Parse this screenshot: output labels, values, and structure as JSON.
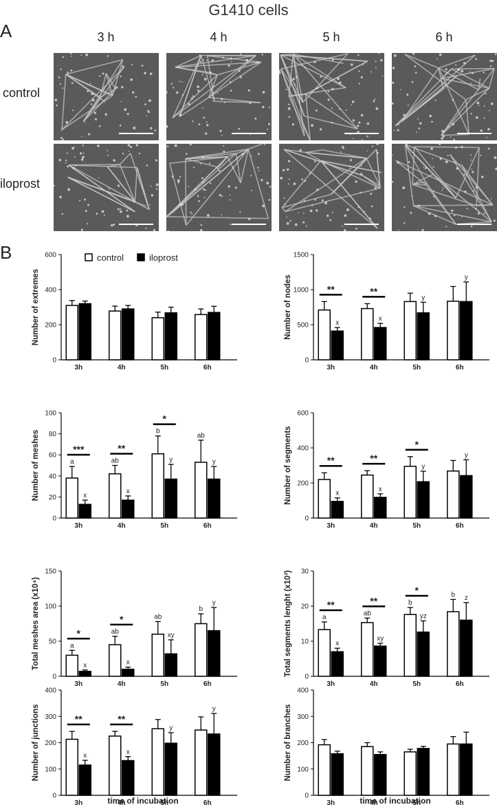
{
  "figure_title": "G1410 cells",
  "panel_a": {
    "letter": "A",
    "times": [
      "3 h",
      "4 h",
      "5 h",
      "6 h"
    ],
    "rows": [
      "control",
      "iloprost"
    ]
  },
  "panel_b": {
    "letter": "B",
    "legend": [
      "control",
      "iloprost"
    ],
    "xlabel": "time of incubation"
  },
  "chart_data": [
    {
      "type": "bar",
      "ylabel": "Number of extremes",
      "categories": [
        "3h",
        "4h",
        "5h",
        "6h"
      ],
      "ylim": [
        0,
        600
      ],
      "yticks": [
        0,
        200,
        400,
        600
      ],
      "series": [
        {
          "name": "control",
          "values": [
            310,
            278,
            240,
            258
          ],
          "errors": [
            28,
            28,
            32,
            32
          ]
        },
        {
          "name": "iloprost",
          "values": [
            320,
            290,
            268,
            270
          ],
          "errors": [
            15,
            20,
            32,
            35
          ]
        }
      ],
      "significance": [],
      "letters_control": [
        "",
        "",
        "",
        ""
      ],
      "letters_iloprost": [
        "",
        "",
        "",
        ""
      ]
    },
    {
      "type": "bar",
      "ylabel": "Number of nodes",
      "categories": [
        "3h",
        "4h",
        "5h",
        "6h"
      ],
      "ylim": [
        0,
        1500
      ],
      "yticks": [
        0,
        500,
        1000,
        1500
      ],
      "series": [
        {
          "name": "control",
          "values": [
            710,
            730,
            830,
            835
          ],
          "errors": [
            120,
            70,
            120,
            210
          ]
        },
        {
          "name": "iloprost",
          "values": [
            410,
            460,
            670,
            830
          ],
          "errors": [
            50,
            60,
            150,
            280
          ]
        }
      ],
      "significance": [
        "**",
        "**",
        "",
        ""
      ],
      "letters_control": [
        "",
        "",
        "",
        ""
      ],
      "letters_iloprost": [
        "x",
        "x",
        "y",
        "y"
      ]
    },
    {
      "type": "bar",
      "ylabel": "Number of meshes",
      "categories": [
        "3h",
        "4h",
        "5h",
        "6h"
      ],
      "ylim": [
        0,
        100
      ],
      "yticks": [
        0,
        20,
        40,
        60,
        80,
        100
      ],
      "series": [
        {
          "name": "control",
          "values": [
            38,
            42,
            61,
            53
          ],
          "errors": [
            11,
            8,
            17,
            21
          ]
        },
        {
          "name": "iloprost",
          "values": [
            13,
            17,
            37,
            37
          ],
          "errors": [
            4,
            4,
            14,
            12
          ]
        }
      ],
      "significance": [
        "***",
        "**",
        "*",
        ""
      ],
      "letters_control": [
        "a",
        "ab",
        "b",
        "ab"
      ],
      "letters_iloprost": [
        "x",
        "x",
        "y",
        "y"
      ]
    },
    {
      "type": "bar",
      "ylabel": "Number of segments",
      "categories": [
        "3h",
        "4h",
        "5h",
        "6h"
      ],
      "ylim": [
        0,
        600
      ],
      "yticks": [
        0,
        200,
        400,
        600
      ],
      "series": [
        {
          "name": "control",
          "values": [
            220,
            245,
            295,
            268
          ],
          "errors": [
            38,
            25,
            55,
            60
          ]
        },
        {
          "name": "iloprost",
          "values": [
            95,
            118,
            207,
            242
          ],
          "errors": [
            20,
            20,
            60,
            90
          ]
        }
      ],
      "significance": [
        "**",
        "**",
        "*",
        ""
      ],
      "letters_control": [
        "",
        "",
        "",
        ""
      ],
      "letters_iloprost": [
        "x",
        "x",
        "y",
        "y"
      ]
    },
    {
      "type": "bar",
      "ylabel": "Total meshes area (x10⁴)",
      "categories": [
        "3h",
        "4h",
        "5h",
        "6h"
      ],
      "ylim": [
        0,
        150
      ],
      "yticks": [
        0,
        50,
        100,
        150
      ],
      "series": [
        {
          "name": "control",
          "values": [
            30,
            45,
            60,
            75
          ],
          "errors": [
            7,
            12,
            18,
            14
          ]
        },
        {
          "name": "iloprost",
          "values": [
            7,
            10,
            32,
            65
          ],
          "errors": [
            2,
            3,
            20,
            33
          ]
        }
      ],
      "significance": [
        "*",
        "*",
        "",
        ""
      ],
      "letters_control": [
        "a",
        "ab",
        "ab",
        "b"
      ],
      "letters_iloprost": [
        "x",
        "x",
        "xy",
        "y"
      ]
    },
    {
      "type": "bar",
      "ylabel": "Total segments lenght (x10³)",
      "categories": [
        "3h",
        "4h",
        "5h",
        "6h"
      ],
      "ylim": [
        0,
        30
      ],
      "yticks": [
        0,
        10,
        20,
        30
      ],
      "series": [
        {
          "name": "control",
          "values": [
            13.3,
            15.3,
            17.6,
            18.4
          ],
          "errors": [
            2.2,
            1.3,
            2.0,
            3.5
          ]
        },
        {
          "name": "iloprost",
          "values": [
            7.0,
            8.6,
            12.6,
            16.0
          ],
          "errors": [
            1.0,
            0.8,
            3.2,
            5.0
          ]
        }
      ],
      "significance": [
        "**",
        "**",
        "*",
        ""
      ],
      "letters_control": [
        "a",
        "ab",
        "b",
        "b"
      ],
      "letters_iloprost": [
        "x",
        "xy",
        "yz",
        "z"
      ]
    },
    {
      "type": "bar",
      "ylabel": "Number of junctions",
      "categories": [
        "3h",
        "4h",
        "5h",
        "6h"
      ],
      "ylim": [
        0,
        400
      ],
      "yticks": [
        0,
        100,
        200,
        300,
        400
      ],
      "series": [
        {
          "name": "control",
          "values": [
            213,
            225,
            253,
            248
          ],
          "errors": [
            30,
            18,
            35,
            50
          ]
        },
        {
          "name": "iloprost",
          "values": [
            115,
            132,
            198,
            233
          ],
          "errors": [
            18,
            15,
            40,
            78
          ]
        }
      ],
      "significance": [
        "**",
        "**",
        "",
        ""
      ],
      "letters_control": [
        "",
        "",
        "",
        ""
      ],
      "letters_iloprost": [
        "x",
        "x",
        "y",
        "y"
      ]
    },
    {
      "type": "bar",
      "ylabel": "Number of branches",
      "categories": [
        "3h",
        "4h",
        "5h",
        "6h"
      ],
      "ylim": [
        0,
        400
      ],
      "yticks": [
        0,
        100,
        200,
        300,
        400
      ],
      "series": [
        {
          "name": "control",
          "values": [
            192,
            185,
            165,
            195
          ],
          "errors": [
            20,
            15,
            10,
            28
          ]
        },
        {
          "name": "iloprost",
          "values": [
            158,
            155,
            178,
            195
          ],
          "errors": [
            10,
            10,
            8,
            45
          ]
        }
      ],
      "significance": [],
      "letters_control": [
        "",
        "",
        "",
        ""
      ],
      "letters_iloprost": [
        "",
        "",
        "",
        ""
      ]
    }
  ]
}
